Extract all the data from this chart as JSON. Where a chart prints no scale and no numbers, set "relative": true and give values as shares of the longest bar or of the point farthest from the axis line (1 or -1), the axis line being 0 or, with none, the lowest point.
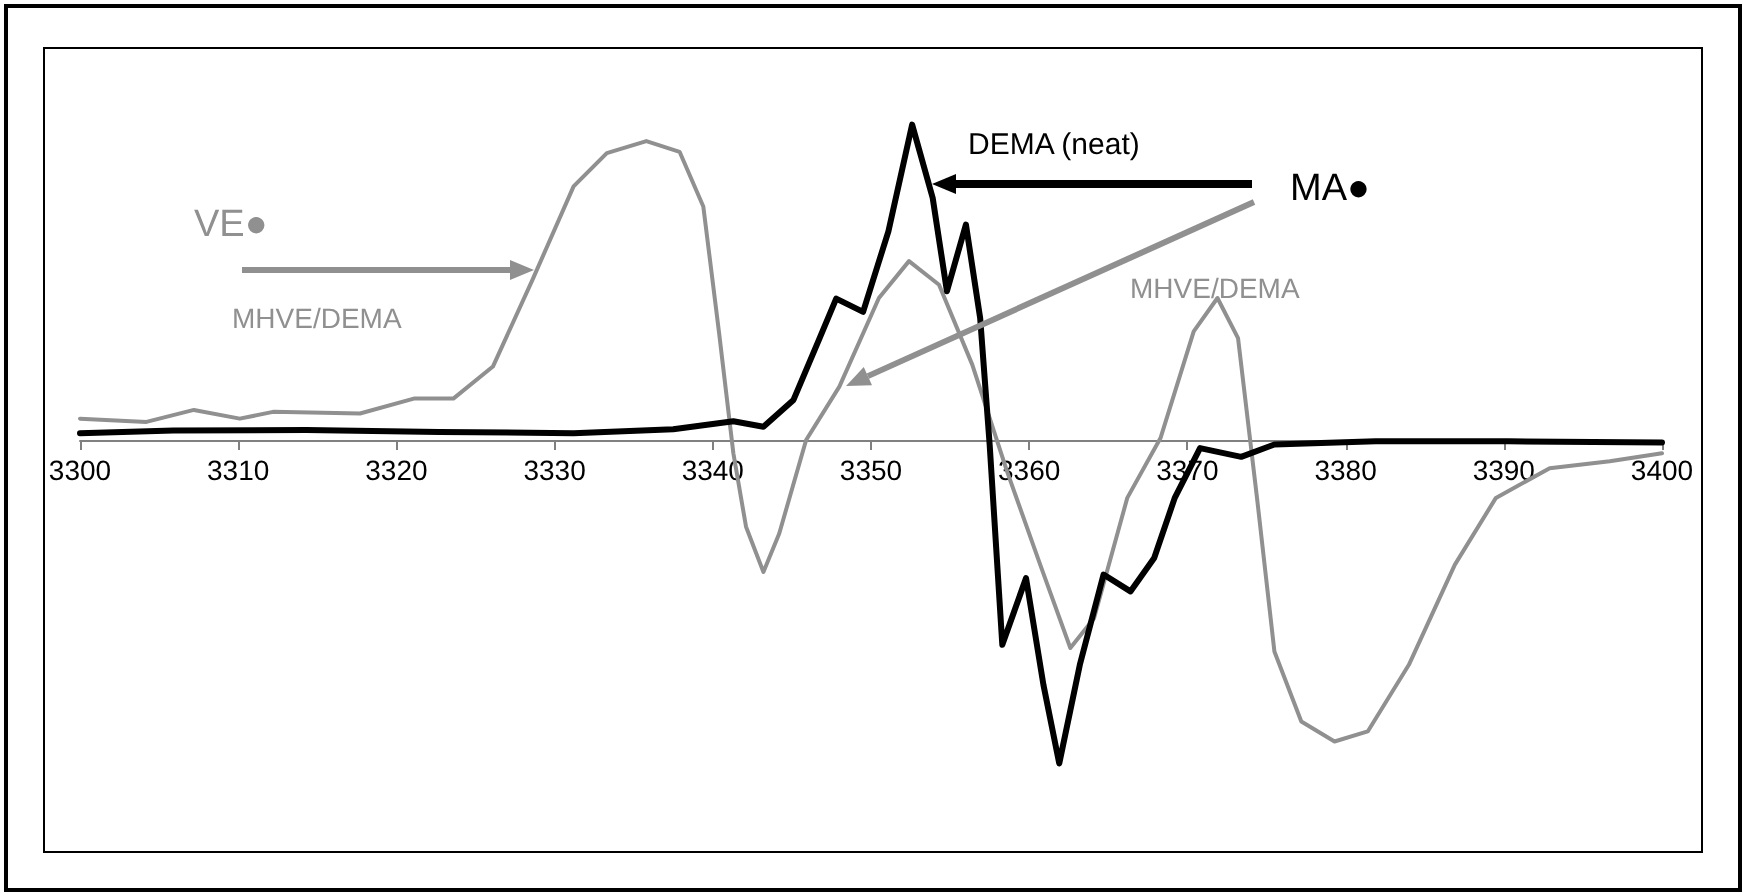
{
  "chart_data": {
    "type": "line",
    "relative": true,
    "xlim": [
      3300,
      3400
    ],
    "xticks": [
      3300,
      3310,
      3320,
      3330,
      3340,
      3350,
      3360,
      3370,
      3380,
      3390,
      3400
    ],
    "grid": false,
    "marker": "none",
    "line_style": "solid",
    "annotations": [
      "VE●",
      "MHVE/DEMA",
      "DEMA (neat)",
      "MA●",
      "MHVE/DEMA"
    ],
    "series": [
      {
        "color": "#909090",
        "x": [
          3300,
          3304.2,
          3307.2,
          3310.1,
          3312.2,
          3317.7,
          3321.1,
          3323.6,
          3326.1,
          3328.6,
          3331.2,
          3333.3,
          3335.8,
          3337.9,
          3339.4,
          3340.4,
          3341.3,
          3342.1,
          3343.2,
          3344.2,
          3345.9,
          3348.0,
          3350.5,
          3352.4,
          3354.3,
          3356.4,
          3358.6,
          3360.7,
          3362.6,
          3364.1,
          3366.2,
          3368.3,
          3370.4,
          3371.9,
          3373.2,
          3374.4,
          3375.5,
          3377.2,
          3379.3,
          3381.4,
          3384.0,
          3386.9,
          3389.5,
          3392.9,
          3396.7,
          3400
        ],
        "values": [
          0.066,
          0.056,
          0.093,
          0.066,
          0.087,
          0.082,
          0.128,
          0.128,
          0.227,
          0.495,
          0.784,
          0.887,
          0.924,
          0.891,
          0.722,
          0.33,
          -0.041,
          -0.268,
          -0.408,
          -0.289,
          0,
          0.165,
          0.439,
          0.553,
          0.48,
          0.233,
          -0.097,
          -0.386,
          -0.643,
          -0.551,
          -0.179,
          0.006,
          0.336,
          0.439,
          0.315,
          -0.179,
          -0.654,
          -0.87,
          -0.932,
          -0.901,
          -0.695,
          -0.386,
          -0.179,
          -0.087,
          -0.066,
          -0.041
        ]
      },
      {
        "color": "#000000",
        "x": [
          3300,
          3305.9,
          3314.3,
          3322.7,
          3331.2,
          3337.5,
          3341.3,
          3343.2,
          3345.1,
          3346.7,
          3347.8,
          3349.5,
          3351.1,
          3352.6,
          3353.9,
          3354.8,
          3356.0,
          3356.9,
          3357.5,
          3358.3,
          3359.8,
          3360.9,
          3361.9,
          3363.2,
          3364.7,
          3366.4,
          3367.9,
          3369.2,
          3370.8,
          3373.4,
          3375.5,
          3381.9,
          3390.3,
          3400
        ],
        "values": [
          0.021,
          0.029,
          0.031,
          0.025,
          0.021,
          0.033,
          0.058,
          0.041,
          0.124,
          0.309,
          0.437,
          0.396,
          0.645,
          0.975,
          0.748,
          0.46,
          0.666,
          0.377,
          -0.014,
          -0.633,
          -0.427,
          -0.757,
          -1,
          -0.695,
          -0.416,
          -0.468,
          -0.365,
          -0.179,
          -0.025,
          -0.052,
          -0.014,
          -0.004,
          -0.004,
          -0.008
        ]
      }
    ]
  }
}
